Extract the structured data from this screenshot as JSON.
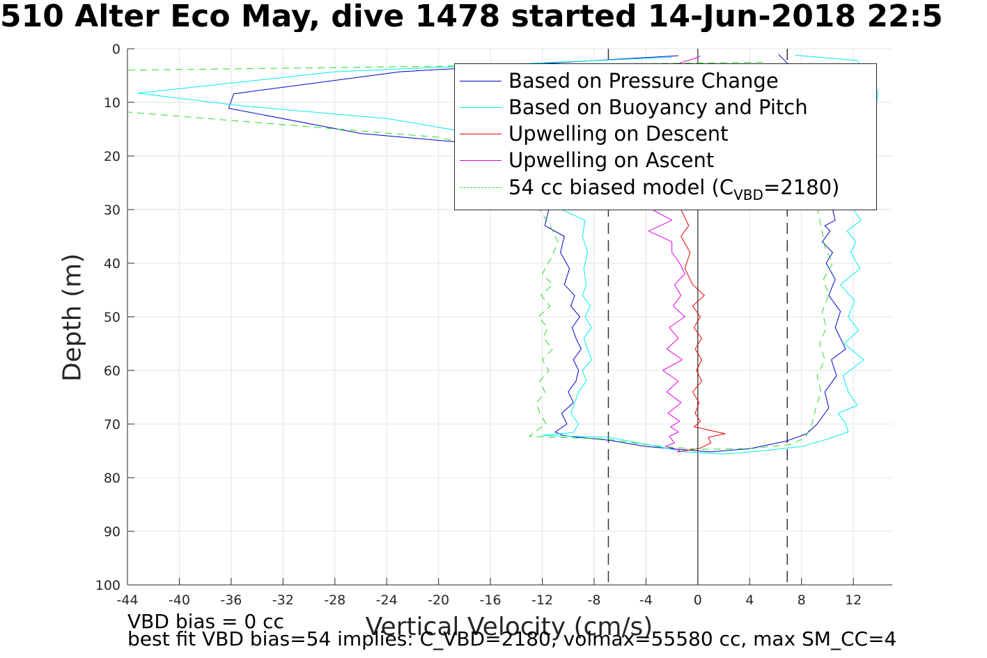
{
  "title": "510 Alter Eco May, dive 1478 started 14-Jun-2018 22:5",
  "footnotes": {
    "line1": "VBD bias = 0 cc",
    "line2": "best fit VBD bias=54 implies: C_VBD=2180, volmax=55580 cc, max SM_CC=4"
  },
  "legend": {
    "pressure": "Based on Pressure Change",
    "buoyancy": "Based on Buoyancy and Pitch",
    "descent": "Upwelling on Descent",
    "ascent": "Upwelling on Ascent",
    "model_prefix": "54 cc biased model (C",
    "model_sub": "VBD",
    "model_suffix": "=2180)"
  },
  "colors": {
    "pressure": "#0000cc",
    "buoyancy": "#00eeee",
    "descent": "#e60000",
    "ascent": "#e600e6",
    "model": "#22dd22",
    "reference": "#333333"
  },
  "chart_data": {
    "type": "line",
    "title": "510 Alter Eco May, dive 1478 started 14-Jun-2018 22:5",
    "xlabel": "Vertical Velocity (cm/s)",
    "ylabel": "Depth (m)",
    "xlim": [
      -44,
      15
    ],
    "ylim": [
      0,
      100
    ],
    "y_reversed": true,
    "grid": true,
    "legend_position": "top-right",
    "xticks": [
      -44,
      -40,
      -36,
      -32,
      -28,
      -24,
      -20,
      -16,
      -12,
      -8,
      -4,
      0,
      4,
      8,
      12
    ],
    "yticks": [
      0,
      10,
      20,
      30,
      40,
      50,
      60,
      70,
      80,
      90,
      100
    ],
    "reference_lines": {
      "solid": [
        0
      ],
      "dashed": [
        -6.9,
        6.9
      ]
    },
    "series": [
      {
        "key": "pressure",
        "name": "Based on Pressure Change",
        "style": "solid",
        "x": [
          -1.5,
          -23,
          -35.8,
          -36.2,
          -26,
          -18,
          -14,
          -12,
          -11.5,
          -11.8,
          -10.3,
          -10.6,
          -9.9,
          -10.3,
          -9.5,
          -9.8,
          -9.1,
          -9.7,
          -9.4,
          -9.0,
          -9.6,
          -9.2,
          -9.4,
          -10.0,
          -9.6,
          -10.5,
          -10.1,
          -11.0,
          -10.4,
          -9.5,
          -6.9,
          -4,
          -1,
          1,
          4,
          6.8,
          8.4,
          9.2,
          10.1,
          9.8,
          10.7,
          10.3,
          11.4,
          10.6,
          11.0,
          10.1,
          10.6,
          9.9,
          10.4,
          9.6,
          10.2,
          9.8,
          10.6,
          10.2,
          10.8,
          10.3,
          10.0,
          6.2
        ],
        "y": [
          1.3,
          4.3,
          8.4,
          11.1,
          15.8,
          17.5,
          20,
          25,
          30,
          33,
          35,
          38,
          41,
          44,
          46,
          48,
          50,
          52,
          54,
          56,
          58,
          60,
          62,
          64,
          66,
          68,
          70,
          71.5,
          72.1,
          72.4,
          73,
          74.2,
          74.8,
          75.2,
          74.6,
          73.2,
          71.8,
          70,
          67,
          64,
          61,
          58,
          56,
          52,
          49,
          46,
          43,
          40,
          38,
          36,
          34,
          33,
          32,
          28,
          25,
          20,
          10,
          1
        ]
      },
      {
        "key": "buoyancy",
        "name": "Based on Buoyancy and Pitch",
        "style": "solid",
        "x": [
          -2,
          -28,
          -43.2,
          -35,
          -24,
          -18,
          -15,
          -12,
          -11,
          -10.5,
          -8.7,
          -8.9,
          -8.5,
          -8.8,
          -8.6,
          -8.9,
          -8.3,
          -8.7,
          -8.2,
          -8.8,
          -8.5,
          -8.2,
          -8.9,
          -8.6,
          -9.2,
          -9.5,
          -9.8,
          -9.2,
          -9.6,
          -12,
          -6.8,
          -3.5,
          -1,
          2,
          5,
          8,
          10,
          11.6,
          11.4,
          10.8,
          12.3,
          11.6,
          11.2,
          12.8,
          11.3,
          12.4,
          11.6,
          12.1,
          11.0,
          12.5,
          11.8,
          12.2,
          11.5,
          12.6,
          12.0,
          13.0,
          13.9,
          12.3,
          7.5
        ],
        "y": [
          1.6,
          4.3,
          8.3,
          10.7,
          13,
          15.5,
          18,
          22,
          26,
          30,
          32,
          35,
          38,
          41,
          44,
          46,
          48,
          50,
          52,
          54,
          56,
          58,
          60,
          62,
          64,
          66,
          68,
          70,
          71.6,
          72.1,
          72.5,
          74,
          75.2,
          75.6,
          75.0,
          74.2,
          72.8,
          71.5,
          69.8,
          68,
          66.5,
          64,
          61,
          58,
          55,
          52.5,
          50,
          47,
          44,
          41,
          38,
          36,
          34,
          32,
          30,
          26,
          8,
          2.2,
          1.2
        ]
      },
      {
        "key": "descent",
        "name": "Upwelling on Descent",
        "style": "solid",
        "x": [
          -1.3,
          -0.7,
          -1.3,
          -0.6,
          -1.0,
          -0.8,
          -0.4,
          0.5,
          -0.4,
          0.2,
          -0.3,
          0.3,
          -0.2,
          0.3,
          -0.1,
          0.3,
          -0.4,
          0.1,
          -0.2,
          0.2,
          -0.3,
          2.1,
          0.8,
          1.0,
          0.2,
          -1.5
        ],
        "y": [
          30,
          33,
          35,
          38,
          41,
          42,
          44,
          46,
          48,
          50,
          52,
          54,
          56,
          58,
          60,
          62,
          64,
          66,
          68,
          69.5,
          70.5,
          71.8,
          72.5,
          73.5,
          74.5,
          75.2
        ]
      },
      {
        "key": "ascent",
        "name": "Upwelling on Ascent",
        "style": "solid",
        "x": [
          -1.6,
          -1.4,
          -2.5,
          -1.8,
          -2.2,
          -1.5,
          -2.1,
          -1.4,
          -2.3,
          -1.3,
          -2.4,
          -1.5,
          -2.7,
          -1.2,
          -2.4,
          -1.5,
          -2.2,
          -1.0,
          -1.9,
          -1.3,
          -1.8,
          -1.0,
          -1.4,
          -2.0,
          -2.0,
          -3.8,
          -2.0,
          -3.5,
          -2.5,
          -0.1,
          0.2
        ],
        "y": [
          75.3,
          74.8,
          74.2,
          73.5,
          72.3,
          71.5,
          70.5,
          69.5,
          68,
          66,
          64,
          62,
          60,
          58,
          56,
          54,
          52,
          50,
          48,
          46,
          44,
          42,
          40,
          38,
          36,
          34,
          32,
          30,
          3.5,
          1.7,
          1.3
        ]
      },
      {
        "key": "model",
        "name": "54 cc biased model (C_VBD=2180)",
        "style": "dashed",
        "x": [
          5,
          -44,
          -44,
          -20,
          -14,
          -12.5,
          -12.2,
          -11.4,
          -10.8,
          -11.3,
          -12.0,
          -11.2,
          -12.1,
          -11.4,
          -12.3,
          -11.6,
          -11.9,
          -11.2,
          -12.0,
          -11.5,
          -12.2,
          -11.8,
          -12.4,
          -12.2,
          -11.7,
          -12.3,
          -13.0,
          -7,
          -3.5,
          0,
          4,
          7.2,
          8.3,
          8.8,
          9.1,
          9.5,
          9.2,
          9.8,
          9.4,
          9.9,
          9.6,
          10.1,
          9.7,
          10.4,
          9.8,
          9.5,
          7
        ],
        "y": [
          2.5,
          4.0,
          11.8,
          16.5,
          20,
          25,
          30,
          33,
          36,
          39,
          42,
          44,
          46,
          48,
          50,
          52,
          54,
          56,
          58,
          60,
          62,
          64,
          66,
          68,
          70,
          71,
          72.3,
          72.8,
          74,
          74.7,
          74.6,
          73.8,
          72.5,
          70,
          67,
          64,
          61,
          58,
          55,
          52,
          49,
          46,
          43,
          40,
          37,
          33,
          3
        ]
      }
    ]
  }
}
